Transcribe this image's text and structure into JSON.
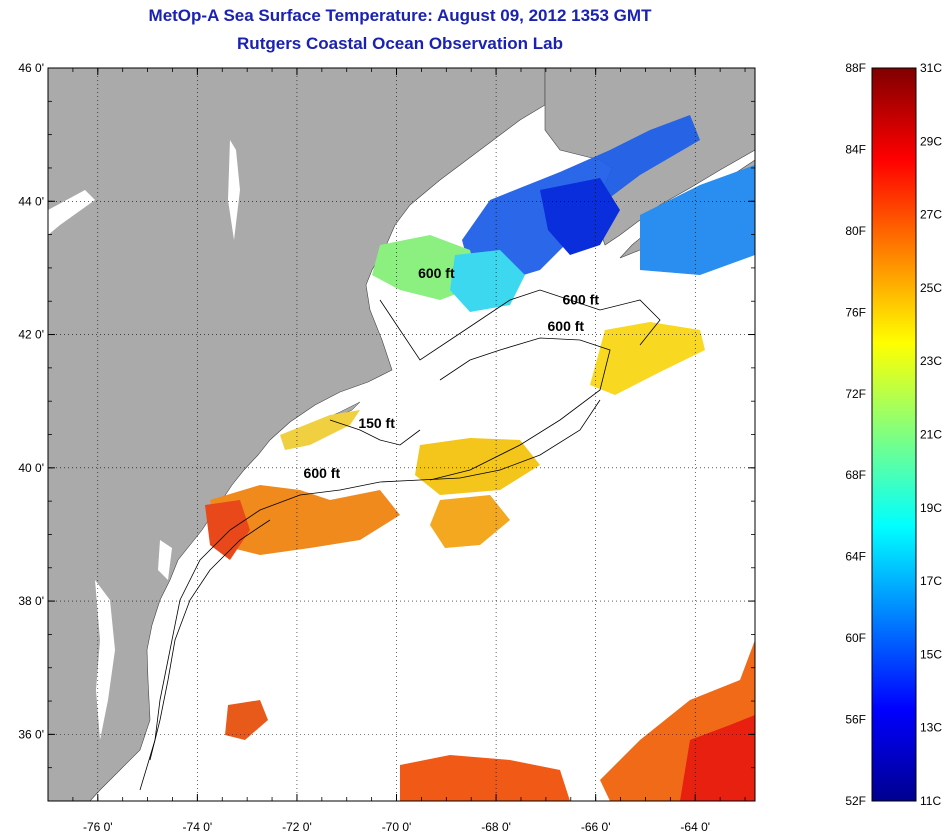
{
  "header": {
    "title": "MetOp-A Sea Surface Temperature:  August 09, 2012 1353 GMT",
    "subtitle": "Rutgers Coastal Ocean Observation Lab"
  },
  "map": {
    "lat_range": [
      35,
      46
    ],
    "lon_range": [
      -77,
      -62.8
    ],
    "lat_ticks": [
      {
        "value": 46,
        "label": "46 0'"
      },
      {
        "value": 44,
        "label": "44 0'"
      },
      {
        "value": 42,
        "label": "42 0'"
      },
      {
        "value": 40,
        "label": "40 0'"
      },
      {
        "value": 38,
        "label": "38 0'"
      },
      {
        "value": 36,
        "label": "36 0'"
      }
    ],
    "lon_ticks": [
      {
        "value": -76,
        "label": "-76 0'"
      },
      {
        "value": -74,
        "label": "-74 0'"
      },
      {
        "value": -72,
        "label": "-72 0'"
      },
      {
        "value": -70,
        "label": "-70 0'"
      },
      {
        "value": -68,
        "label": "-68 0'"
      },
      {
        "value": -66,
        "label": "-66 0'"
      },
      {
        "value": -64,
        "label": "-64 0'"
      }
    ],
    "grid": "dotted",
    "land_color": "#aaaaaa",
    "isobath_labels": [
      {
        "text": "600 ft",
        "lon": -69.2,
        "lat": 42.85
      },
      {
        "text": "600 ft",
        "lon": -66.3,
        "lat": 42.45
      },
      {
        "text": "600 ft",
        "lon": -66.6,
        "lat": 42.05
      },
      {
        "text": "150 ft",
        "lon": -70.4,
        "lat": 40.6
      },
      {
        "text": "600 ft",
        "lon": -71.5,
        "lat": 39.85
      }
    ]
  },
  "colorbar": {
    "colormap": "jet",
    "colors": [
      "#00008f",
      "#0000ff",
      "#0080ff",
      "#00ffff",
      "#80ff80",
      "#ffff00",
      "#ff8000",
      "#ff0000",
      "#800000"
    ],
    "celsius_range": [
      11,
      31
    ],
    "fahrenheit_range": [
      52,
      88
    ],
    "fahrenheit_labels": [
      "88F",
      "84F",
      "80F",
      "76F",
      "72F",
      "68F",
      "64F",
      "60F",
      "56F",
      "52F"
    ],
    "celsius_labels": [
      "31C",
      "29C",
      "27C",
      "25C",
      "23C",
      "21C",
      "19C",
      "17C",
      "15C",
      "13C",
      "11C"
    ]
  }
}
